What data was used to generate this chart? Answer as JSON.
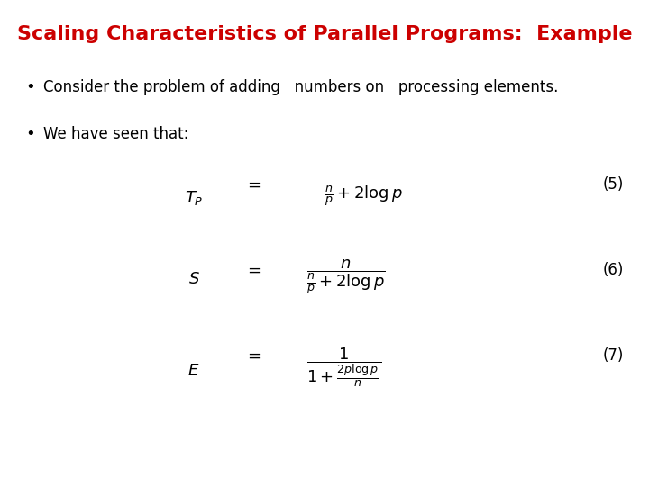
{
  "title": "Scaling Characteristics of Parallel Programs:  Example",
  "title_color": "#cc0000",
  "title_fontsize": 16,
  "bg_color": "#ffffff",
  "bullet1": "Consider the problem of adding   numbers on   processing elements.",
  "bullet2": "We have seen that:",
  "eq5_num": "(5)",
  "eq6_num": "(6)",
  "eq7_num": "(7)"
}
